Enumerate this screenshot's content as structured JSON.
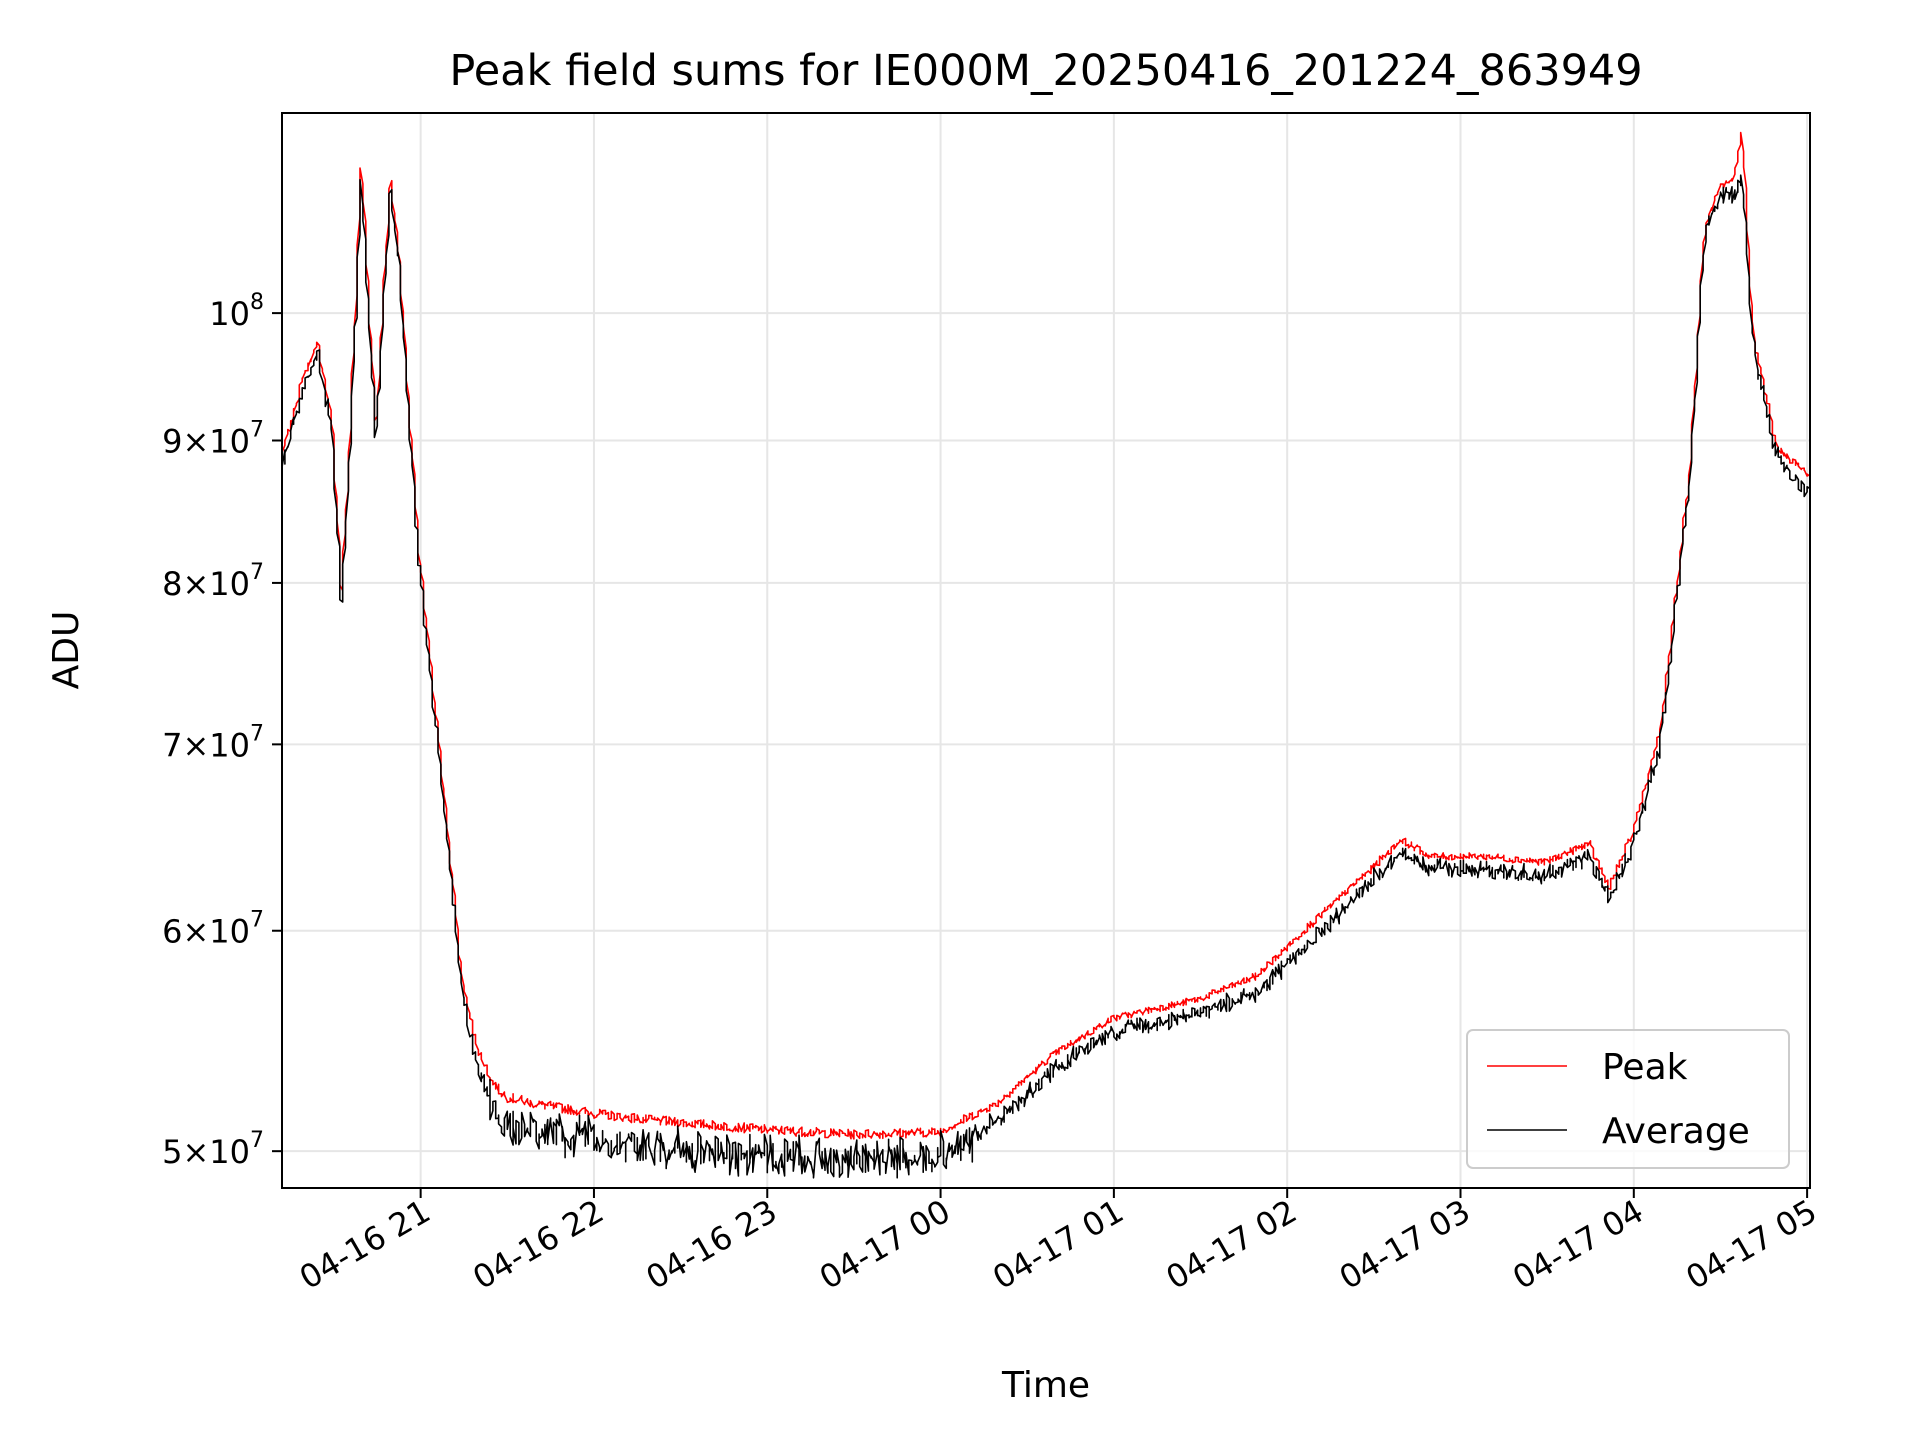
{
  "chart_data": {
    "type": "line",
    "title": "Peak field sums for IE000M_20250416_201224_863949",
    "xlabel": "Time",
    "ylabel": "ADU",
    "y_scale": "log",
    "ylim": [
      48500000,
      118000000
    ],
    "xlim": [
      "2025-04-16 20:12",
      "2025-04-17 05:01"
    ],
    "grid": true,
    "legend_location": "lower-right",
    "x_ticks": [
      {
        "label": "04-16 21",
        "value": "2025-04-16 21:00"
      },
      {
        "label": "04-16 22",
        "value": "2025-04-16 22:00"
      },
      {
        "label": "04-16 23",
        "value": "2025-04-16 23:00"
      },
      {
        "label": "04-17 00",
        "value": "2025-04-17 00:00"
      },
      {
        "label": "04-17 01",
        "value": "2025-04-17 01:00"
      },
      {
        "label": "04-17 02",
        "value": "2025-04-17 02:00"
      },
      {
        "label": "04-17 03",
        "value": "2025-04-17 03:00"
      },
      {
        "label": "04-17 04",
        "value": "2025-04-17 04:00"
      },
      {
        "label": "04-17 05",
        "value": "2025-04-17 05:00"
      }
    ],
    "y_ticks": [
      {
        "value": 50000000,
        "mantissa": "5",
        "exponent": "7"
      },
      {
        "value": 60000000,
        "mantissa": "6",
        "exponent": "7"
      },
      {
        "value": 70000000,
        "mantissa": "7",
        "exponent": "7"
      },
      {
        "value": 80000000,
        "mantissa": "8",
        "exponent": "7"
      },
      {
        "value": 90000000,
        "mantissa": "9",
        "exponent": "7"
      },
      {
        "value": 100000000,
        "mantissa": "",
        "exponent": "8"
      }
    ],
    "x": [
      "2025-04-16 20:12",
      "2025-04-16 20:20",
      "2025-04-16 20:25",
      "2025-04-16 20:30",
      "2025-04-16 20:33",
      "2025-04-16 20:36",
      "2025-04-16 20:40",
      "2025-04-16 20:45",
      "2025-04-16 20:50",
      "2025-04-16 20:53",
      "2025-04-16 20:56",
      "2025-04-16 21:00",
      "2025-04-16 21:05",
      "2025-04-16 21:10",
      "2025-04-16 21:15",
      "2025-04-16 21:20",
      "2025-04-16 21:25",
      "2025-04-16 21:30",
      "2025-04-16 21:40",
      "2025-04-16 21:50",
      "2025-04-16 22:00",
      "2025-04-16 22:20",
      "2025-04-16 22:40",
      "2025-04-16 23:00",
      "2025-04-16 23:30",
      "2025-04-17 00:00",
      "2025-04-17 00:20",
      "2025-04-17 00:40",
      "2025-04-17 01:00",
      "2025-04-17 01:30",
      "2025-04-17 01:50",
      "2025-04-17 02:10",
      "2025-04-17 02:30",
      "2025-04-17 02:40",
      "2025-04-17 02:50",
      "2025-04-17 03:10",
      "2025-04-17 03:30",
      "2025-04-17 03:45",
      "2025-04-17 03:52",
      "2025-04-17 04:00",
      "2025-04-17 04:10",
      "2025-04-17 04:20",
      "2025-04-17 04:25",
      "2025-04-17 04:30",
      "2025-04-17 04:35",
      "2025-04-17 04:38",
      "2025-04-17 04:42",
      "2025-04-17 04:50",
      "2025-04-17 05:01"
    ],
    "series": [
      {
        "name": "Peak",
        "color": "#ff0000",
        "values": [
          88500000,
          95000000,
          97500000,
          91000000,
          79000000,
          90000000,
          113000000,
          91000000,
          112000000,
          105000000,
          94000000,
          82000000,
          73000000,
          65000000,
          57500000,
          54500000,
          53000000,
          52300000,
          52000000,
          51800000,
          51600000,
          51300000,
          51100000,
          50900000,
          50700000,
          50800000,
          52000000,
          54200000,
          55800000,
          56700000,
          57800000,
          60500000,
          63200000,
          64700000,
          63800000,
          63800000,
          63500000,
          64500000,
          62200000,
          65000000,
          71000000,
          88000000,
          107000000,
          111000000,
          111500000,
          116000000,
          98000000,
          89500000,
          87500000
        ]
      },
      {
        "name": "Average",
        "color": "#000000",
        "values": [
          88000000,
          94500000,
          97000000,
          90500000,
          78600000,
          89500000,
          112000000,
          90500000,
          111500000,
          104500000,
          93500000,
          81500000,
          72500000,
          64500000,
          57000000,
          53800000,
          52300000,
          51600000,
          51300000,
          51000000,
          50800000,
          50500000,
          50300000,
          50100000,
          50000000,
          50200000,
          51400000,
          53700000,
          55300000,
          56200000,
          57200000,
          59800000,
          62800000,
          64300000,
          63400000,
          63300000,
          63000000,
          64000000,
          61800000,
          64500000,
          70500000,
          87500000,
          106500000,
          110500000,
          110500000,
          112000000,
          97500000,
          89000000,
          86500000
        ]
      }
    ]
  }
}
